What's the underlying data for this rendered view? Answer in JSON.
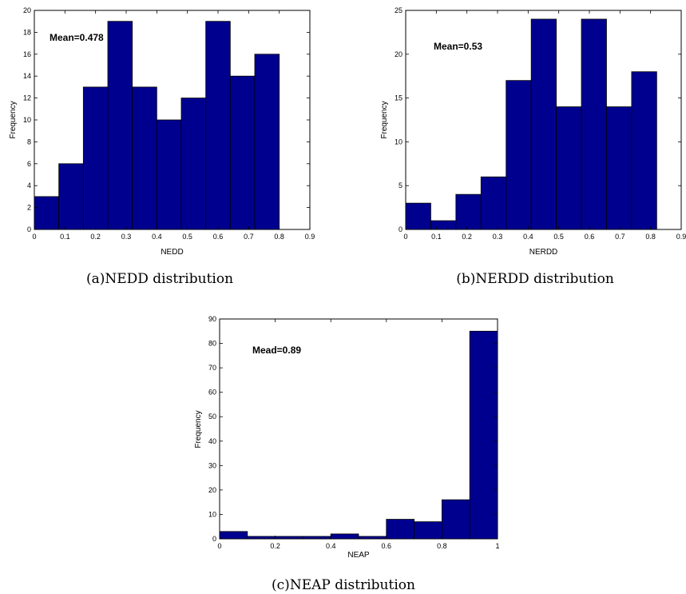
{
  "colors": {
    "bar": "#00008f",
    "stroke": "#000000"
  },
  "chart_data": [
    {
      "type": "bar",
      "id": "a",
      "xlabel": "NEDD",
      "ylabel": "Frequency",
      "annotation": "Mean=0.478",
      "caption": "(a)NEDD distribution",
      "xlim": [
        0,
        0.9
      ],
      "ylim": [
        0,
        20
      ],
      "xticks": [
        "0",
        "0.1",
        "0.2",
        "0.3",
        "0.4",
        "0.5",
        "0.6",
        "0.7",
        "0.8",
        "0.9"
      ],
      "yticks": [
        "0",
        "2",
        "4",
        "6",
        "8",
        "10",
        "12",
        "14",
        "16",
        "18",
        "20"
      ],
      "bin_edges": [
        0,
        0.08,
        0.16,
        0.24,
        0.32,
        0.4,
        0.48,
        0.56,
        0.64,
        0.72,
        0.8
      ],
      "values": [
        3,
        6,
        13,
        19,
        13,
        10,
        12,
        19,
        14,
        16
      ]
    },
    {
      "type": "bar",
      "id": "b",
      "xlabel": "NERDD",
      "ylabel": "Frequency",
      "annotation": "Mean=0.53",
      "caption": "(b)NERDD distribution",
      "xlim": [
        0,
        0.9
      ],
      "ylim": [
        0,
        25
      ],
      "xticks": [
        "0",
        "0.1",
        "0.2",
        "0.3",
        "0.4",
        "0.5",
        "0.6",
        "0.7",
        "0.8",
        "0.9"
      ],
      "yticks": [
        "0",
        "5",
        "10",
        "15",
        "20",
        "25"
      ],
      "bin_edges": [
        0,
        0.082,
        0.164,
        0.246,
        0.328,
        0.41,
        0.492,
        0.574,
        0.656,
        0.738,
        0.82
      ],
      "values": [
        3,
        1,
        4,
        6,
        17,
        24,
        14,
        24,
        14,
        18
      ]
    },
    {
      "type": "bar",
      "id": "c",
      "xlabel": "NEAP",
      "ylabel": "Frequency",
      "annotation": "Mead=0.89",
      "caption": "(c)NEAP distribution",
      "xlim": [
        0,
        1
      ],
      "ylim": [
        0,
        90
      ],
      "xticks": [
        "0",
        "0.2",
        "0.4",
        "0.6",
        "0.8",
        "1"
      ],
      "yticks": [
        "0",
        "10",
        "20",
        "30",
        "40",
        "50",
        "60",
        "70",
        "80",
        "90"
      ],
      "bin_edges": [
        0,
        0.1,
        0.2,
        0.3,
        0.4,
        0.5,
        0.6,
        0.7,
        0.8,
        0.9,
        1.0
      ],
      "values": [
        3,
        1,
        1,
        1,
        2,
        1,
        8,
        7,
        16,
        85
      ]
    }
  ]
}
